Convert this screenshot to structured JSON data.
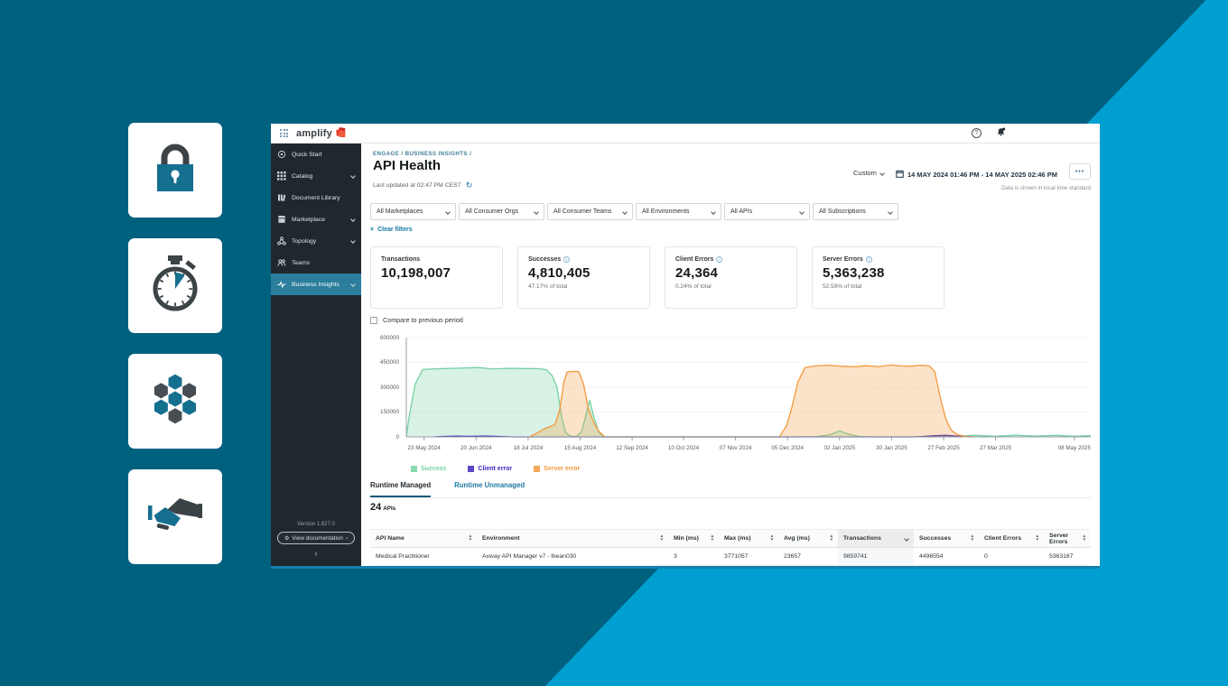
{
  "page": {
    "background_dark": "#00617f",
    "background_light": "#009fd1",
    "icon_teal": "#156f8f",
    "icon_dark": "#3c4347",
    "side_cards": [
      {
        "icon": "lock-icon"
      },
      {
        "icon": "stopwatch-icon"
      },
      {
        "icon": "hexagon-cluster-icon"
      },
      {
        "icon": "handshake-icon"
      }
    ]
  },
  "app": {
    "topbar": {
      "brand": "amplify",
      "icons": [
        "waffle-menu-icon",
        "amplify-logo-mark",
        "help-icon",
        "notification-bell-icon"
      ]
    },
    "sidebar": {
      "items": [
        {
          "label": "Quick Start",
          "icon": "compass-icon",
          "chevron": false,
          "active": false
        },
        {
          "label": "Catalog",
          "icon": "grid-icon",
          "chevron": true,
          "active": false
        },
        {
          "label": "Document Library",
          "icon": "library-icon",
          "chevron": false,
          "active": false
        },
        {
          "label": "Marketplace",
          "icon": "storefront-icon",
          "chevron": true,
          "active": false
        },
        {
          "label": "Topology",
          "icon": "topology-icon",
          "chevron": true,
          "active": false
        },
        {
          "label": "Teams",
          "icon": "teams-icon",
          "chevron": false,
          "active": false
        },
        {
          "label": "Business Insights",
          "icon": "insights-icon",
          "chevron": true,
          "active": true
        }
      ],
      "version": "Version 1.827.0",
      "doc_button": "View documentation"
    },
    "header": {
      "breadcrumb": "ENGAGE / BUSINESS INSIGHTS /",
      "title": "API Health",
      "last_updated": "Last updated at 02:47 PM CEST",
      "range_preset": "Custom",
      "date_range": "14 MAY 2024 01:46 PM - 14 MAY 2025 02:46 PM",
      "timezone_note": "Data is shown in local time standard"
    },
    "filters": {
      "dropdowns": [
        "All Marketplaces",
        "All Consumer Orgs",
        "All Consumer Teams",
        "All Environments",
        "All APIs",
        "All Subscriptions"
      ],
      "clear_label": "Clear filters"
    },
    "metrics": [
      {
        "label": "Transactions",
        "value": "10,198,007",
        "sub": "",
        "info": false
      },
      {
        "label": "Successes",
        "value": "4,810,405",
        "sub": "47.17% of total",
        "info": true
      },
      {
        "label": "Client Errors",
        "value": "24,364",
        "sub": "0.24% of total",
        "info": true
      },
      {
        "label": "Server Errors",
        "value": "5,363,238",
        "sub": "52.59% of total",
        "info": true
      }
    ],
    "compare_label": "Compare to previous period",
    "chart_data": {
      "type": "area",
      "title": "",
      "xlabel": "",
      "ylabel": "",
      "ylim": [
        0,
        600000
      ],
      "yticks": [
        0,
        150000,
        300000,
        450000,
        600000
      ],
      "grid": "horizontal-dotted",
      "legend_position": "bottom",
      "x_ticks": [
        {
          "pos": 0.026,
          "label": "23 May 2024"
        },
        {
          "pos": 0.102,
          "label": "20 Jun 2024"
        },
        {
          "pos": 0.178,
          "label": "18 Jul 2024"
        },
        {
          "pos": 0.254,
          "label": "15 Aug 2024"
        },
        {
          "pos": 0.33,
          "label": "12 Sep 2024"
        },
        {
          "pos": 0.405,
          "label": "10 Oct 2024"
        },
        {
          "pos": 0.481,
          "label": "07 Nov 2024"
        },
        {
          "pos": 0.557,
          "label": "05 Dec 2024"
        },
        {
          "pos": 0.633,
          "label": "02 Jan 2025"
        },
        {
          "pos": 0.709,
          "label": "30 Jan 2025"
        },
        {
          "pos": 0.785,
          "label": "27 Feb 2025"
        },
        {
          "pos": 0.861,
          "label": "27 Mar 2025"
        },
        {
          "pos": 0.976,
          "label": "08 May 2025"
        }
      ],
      "series": [
        {
          "name": "Success",
          "color": "#74d1a2",
          "fill_opacity": 0.28,
          "points": [
            [
              0,
              0
            ],
            [
              0.004,
              120000
            ],
            [
              0.013,
              320000
            ],
            [
              0.024,
              408000
            ],
            [
              0.055,
              413000
            ],
            [
              0.085,
              416000
            ],
            [
              0.105,
              419000
            ],
            [
              0.125,
              411000
            ],
            [
              0.15,
              414000
            ],
            [
              0.178,
              413000
            ],
            [
              0.195,
              412000
            ],
            [
              0.205,
              405000
            ],
            [
              0.213,
              370000
            ],
            [
              0.22,
              300000
            ],
            [
              0.227,
              120000
            ],
            [
              0.233,
              25000
            ],
            [
              0.24,
              4000
            ],
            [
              0.248,
              2000
            ],
            [
              0.256,
              30000
            ],
            [
              0.263,
              140000
            ],
            [
              0.268,
              222000
            ],
            [
              0.274,
              120000
            ],
            [
              0.281,
              30000
            ],
            [
              0.288,
              0
            ],
            [
              0.4,
              0
            ],
            [
              0.55,
              0
            ],
            [
              0.6,
              2000
            ],
            [
              0.618,
              12000
            ],
            [
              0.633,
              36000
            ],
            [
              0.648,
              14000
            ],
            [
              0.662,
              3000
            ],
            [
              0.69,
              0
            ],
            [
              0.78,
              0
            ],
            [
              0.8,
              3000
            ],
            [
              0.83,
              9000
            ],
            [
              0.86,
              4000
            ],
            [
              0.89,
              10000
            ],
            [
              0.92,
              5000
            ],
            [
              0.95,
              9000
            ],
            [
              0.975,
              4000
            ],
            [
              1,
              7000
            ]
          ]
        },
        {
          "name": "Client error",
          "color": "#3d28be",
          "fill_opacity": 0.35,
          "points": [
            [
              0.04,
              0
            ],
            [
              0.055,
              2500
            ],
            [
              0.075,
              4500
            ],
            [
              0.095,
              3500
            ],
            [
              0.115,
              4500
            ],
            [
              0.135,
              2500
            ],
            [
              0.155,
              0
            ],
            [
              0.74,
              0
            ],
            [
              0.755,
              3000
            ],
            [
              0.772,
              7000
            ],
            [
              0.788,
              9000
            ],
            [
              0.8,
              6000
            ],
            [
              0.812,
              2500
            ],
            [
              0.825,
              0
            ]
          ]
        },
        {
          "name": "Server error",
          "color": "#f2993c",
          "fill_opacity": 0.28,
          "points": [
            [
              0.18,
              0
            ],
            [
              0.192,
              25000
            ],
            [
              0.202,
              50000
            ],
            [
              0.21,
              62000
            ],
            [
              0.217,
              75000
            ],
            [
              0.224,
              160000
            ],
            [
              0.23,
              330000
            ],
            [
              0.235,
              392000
            ],
            [
              0.243,
              396000
            ],
            [
              0.252,
              394000
            ],
            [
              0.259,
              320000
            ],
            [
              0.266,
              170000
            ],
            [
              0.273,
              95000
            ],
            [
              0.281,
              35000
            ],
            [
              0.29,
              0
            ],
            [
              0.4,
              0
            ],
            [
              0.545,
              0
            ],
            [
              0.556,
              70000
            ],
            [
              0.564,
              190000
            ],
            [
              0.572,
              330000
            ],
            [
              0.582,
              418000
            ],
            [
              0.595,
              428000
            ],
            [
              0.615,
              433000
            ],
            [
              0.635,
              427000
            ],
            [
              0.655,
              424000
            ],
            [
              0.67,
              430000
            ],
            [
              0.69,
              425000
            ],
            [
              0.708,
              434000
            ],
            [
              0.722,
              429000
            ],
            [
              0.738,
              427000
            ],
            [
              0.752,
              433000
            ],
            [
              0.764,
              430000
            ],
            [
              0.772,
              395000
            ],
            [
              0.78,
              240000
            ],
            [
              0.788,
              110000
            ],
            [
              0.796,
              40000
            ],
            [
              0.806,
              12000
            ],
            [
              0.818,
              3000
            ],
            [
              0.83,
              0
            ]
          ]
        }
      ]
    },
    "tabs": [
      {
        "label": "Runtime Managed",
        "active": true
      },
      {
        "label": "Runtime Unmanaged",
        "active": false
      }
    ],
    "api_count": {
      "value": "24",
      "unit": "APIs"
    },
    "table": {
      "columns": [
        {
          "label": "API Name",
          "sort": "both",
          "highlighted": false
        },
        {
          "label": "Environment",
          "sort": "both",
          "highlighted": false
        },
        {
          "label": "Min (ms)",
          "sort": "both",
          "highlighted": false
        },
        {
          "label": "Max (ms)",
          "sort": "both",
          "highlighted": false
        },
        {
          "label": "Avg (ms)",
          "sort": "both",
          "highlighted": false
        },
        {
          "label": "Transactions",
          "sort": "desc",
          "highlighted": true
        },
        {
          "label": "Successes",
          "sort": "both",
          "highlighted": false
        },
        {
          "label": "Client Errors",
          "sort": "both",
          "highlighted": false
        },
        {
          "label": "Server Errors",
          "sort": "both",
          "highlighted": false
        }
      ],
      "rows": [
        [
          "Medical Practitioner",
          "Axway API Manager v7 - lbean030",
          "3",
          "3771057",
          "23657",
          "9859741",
          "4496554",
          "0",
          "5363187"
        ]
      ]
    }
  }
}
